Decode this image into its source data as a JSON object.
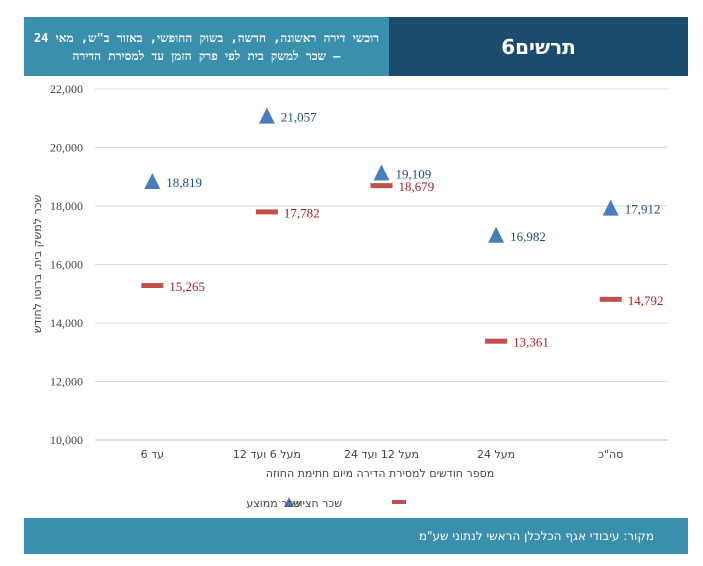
{
  "header": {
    "subtitle": "רוכשי דירה ראשונה, חדשה, בשוק החופשי, באזור ב\"ש, מאי 24 – שכר למשק בית לפי פרק הזמן עד למסירת הדירה",
    "chart_label": "תרשים6"
  },
  "footer": {
    "source": "מקור: עיבודי אגף הכלכלן הראשי לנתוני שע\"מ"
  },
  "colors": {
    "average": "#4a7ebb",
    "median": "#c0504d",
    "grid": "#d9d9d9",
    "axis": "#bfbfbf"
  },
  "chart_data": {
    "type": "scatter",
    "title": "",
    "xlabel": "מספר חודשים למסירת הדירה מיום חתימת החוזה",
    "ylabel": "שכר למשק בית, ברוטו לחודש",
    "ylim": [
      10000,
      22000
    ],
    "yticks": [
      10000,
      12000,
      14000,
      16000,
      18000,
      20000,
      22000
    ],
    "ytick_labels": [
      "10,000",
      "12,000",
      "14,000",
      "16,000",
      "18,000",
      "20,000",
      "22,000"
    ],
    "categories": [
      "עד 6",
      "מעל 6 ועד 12",
      "מעל 12 ועד 24",
      "מעל 24",
      "סה\"כ"
    ],
    "series": [
      {
        "name": "שכר ממוצע",
        "marker": "triangle",
        "values": [
          18819,
          21057,
          19109,
          16982,
          17912
        ],
        "labels": [
          "18,819",
          "21,057",
          "19,109",
          "16,982",
          "17,912"
        ]
      },
      {
        "name": "שכר חציוני",
        "marker": "dash",
        "values": [
          15265,
          17782,
          18679,
          13361,
          14792
        ],
        "labels": [
          "15,265",
          "17,782",
          "18,679",
          "13,361",
          "14,792"
        ]
      }
    ],
    "legend": [
      "שכר חציוני",
      "שכר ממוצע"
    ]
  }
}
